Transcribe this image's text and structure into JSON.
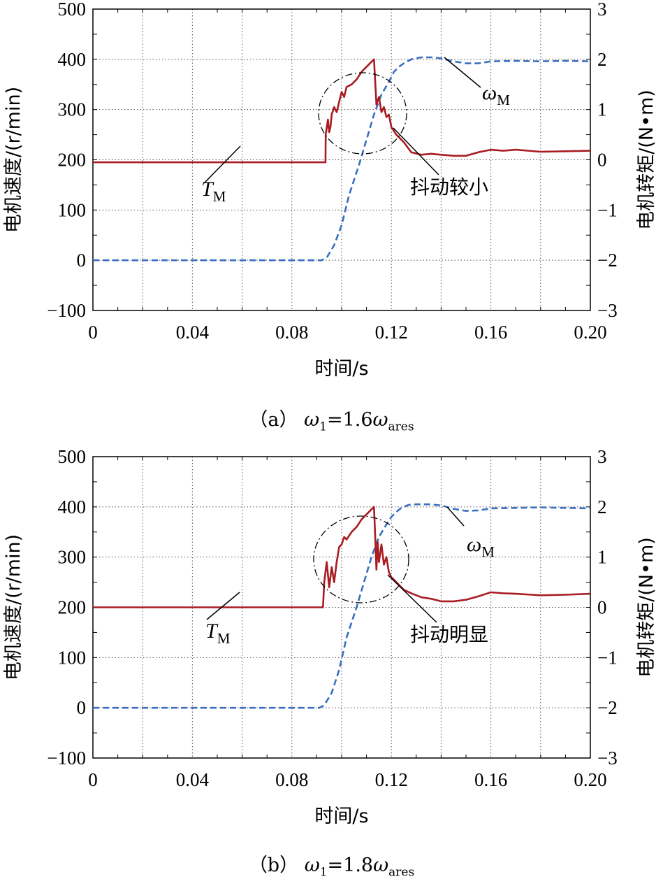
{
  "chart_data": [
    {
      "type": "line",
      "panel": "a",
      "caption": {
        "prefix": "（a） ",
        "w": "ω",
        "sub1": "1",
        "mid": "=1.6",
        "w2": "ω",
        "sub2": "ares"
      },
      "xlabel": "时间/s",
      "ylabel_left": "电机速度/(r/min)",
      "ylabel_right": "电机转矩/(N•m)",
      "xlim": [
        0,
        0.2
      ],
      "ylim_left": [
        -100,
        500
      ],
      "ylim_right": [
        -3,
        3
      ],
      "x_ticks": [
        "0",
        "0.04",
        "0.08",
        "0.12",
        "0.16",
        "0.20"
      ],
      "y_left_ticks": [
        "−100",
        "0",
        "100",
        "200",
        "300",
        "400",
        "500"
      ],
      "y_right_ticks": [
        "−3",
        "−2",
        "−1",
        "0",
        "1",
        "2",
        "3"
      ],
      "grid": true,
      "annotations": {
        "speed_label": "ω",
        "speed_sub": "M",
        "torque_label": "T",
        "torque_sub": "M",
        "note": "抖动较小"
      },
      "colors": {
        "speed": "#3a6fc0",
        "torque": "#a81c22"
      },
      "series": [
        {
          "role": "speed",
          "axis": "left",
          "style": "dashed",
          "x": [
            0,
            0.03,
            0.06,
            0.092,
            0.094,
            0.097,
            0.1,
            0.103,
            0.107,
            0.11,
            0.113,
            0.116,
            0.119,
            0.121,
            0.123,
            0.125,
            0.128,
            0.132,
            0.136,
            0.14,
            0.145,
            0.15,
            0.155,
            0.16,
            0.17,
            0.18,
            0.19,
            0.2
          ],
          "y": [
            0,
            0,
            0,
            0,
            5,
            30,
            70,
            130,
            190,
            240,
            290,
            330,
            355,
            375,
            385,
            392,
            400,
            404,
            404,
            402,
            396,
            392,
            392,
            396,
            397,
            396,
            397,
            396
          ]
        },
        {
          "role": "torque",
          "axis": "right",
          "style": "solid",
          "x": [
            0,
            0.03,
            0.06,
            0.0935,
            0.0936,
            0.0945,
            0.095,
            0.0955,
            0.096,
            0.097,
            0.098,
            0.099,
            0.1,
            0.101,
            0.102,
            0.104,
            0.106,
            0.108,
            0.11,
            0.112,
            0.113,
            0.1135,
            0.114,
            0.115,
            0.116,
            0.117,
            0.118,
            0.119,
            0.12,
            0.122,
            0.125,
            0.128,
            0.132,
            0.136,
            0.14,
            0.145,
            0.15,
            0.155,
            0.16,
            0.165,
            0.17,
            0.18,
            0.19,
            0.2
          ],
          "y": [
            -0.05,
            -0.05,
            -0.05,
            -0.05,
            0.5,
            0.8,
            0.55,
            0.65,
            0.9,
            1.05,
            0.95,
            1.15,
            1.35,
            1.25,
            1.45,
            1.5,
            1.6,
            1.75,
            1.85,
            1.95,
            2.0,
            1.55,
            1.1,
            1.25,
            0.95,
            1.05,
            0.85,
            0.9,
            0.65,
            0.5,
            0.35,
            0.15,
            0.1,
            0.12,
            0.1,
            0.08,
            0.08,
            0.15,
            0.2,
            0.18,
            0.2,
            0.16,
            0.17,
            0.18
          ]
        }
      ]
    },
    {
      "type": "line",
      "panel": "b",
      "caption": {
        "prefix": "（b） ",
        "w": "ω",
        "sub1": "1",
        "mid": "=1.8",
        "w2": "ω",
        "sub2": "ares"
      },
      "xlabel": "时间/s",
      "ylabel_left": "电机速度/(r/min)",
      "ylabel_right": "电机转矩/(N•m)",
      "xlim": [
        0,
        0.2
      ],
      "ylim_left": [
        -100,
        500
      ],
      "ylim_right": [
        -3,
        3
      ],
      "x_ticks": [
        "0",
        "0.04",
        "0.08",
        "0.12",
        "0.16",
        "0.20"
      ],
      "y_left_ticks": [
        "−100",
        "0",
        "100",
        "200",
        "300",
        "400",
        "500"
      ],
      "y_right_ticks": [
        "−3",
        "−2",
        "−1",
        "0",
        "1",
        "2",
        "3"
      ],
      "grid": true,
      "annotations": {
        "speed_label": "ω",
        "speed_sub": "M",
        "torque_label": "T",
        "torque_sub": "M",
        "note": "抖动明显"
      },
      "colors": {
        "speed": "#3a6fc0",
        "torque": "#a81c22"
      },
      "series": [
        {
          "role": "speed",
          "axis": "left",
          "style": "dashed",
          "x": [
            0,
            0.03,
            0.06,
            0.091,
            0.093,
            0.096,
            0.099,
            0.102,
            0.106,
            0.109,
            0.112,
            0.115,
            0.118,
            0.12,
            0.122,
            0.124,
            0.127,
            0.13,
            0.135,
            0.14,
            0.145,
            0.15,
            0.155,
            0.16,
            0.17,
            0.18,
            0.19,
            0.2
          ],
          "y": [
            0,
            0,
            0,
            0,
            5,
            30,
            75,
            140,
            200,
            250,
            300,
            340,
            365,
            380,
            390,
            398,
            404,
            405,
            405,
            403,
            396,
            392,
            393,
            397,
            398,
            399,
            398,
            397
          ]
        },
        {
          "role": "torque",
          "axis": "right",
          "style": "solid",
          "x": [
            0,
            0.03,
            0.06,
            0.0925,
            0.093,
            0.094,
            0.095,
            0.096,
            0.097,
            0.098,
            0.099,
            0.1,
            0.101,
            0.102,
            0.104,
            0.106,
            0.108,
            0.11,
            0.112,
            0.113,
            0.1135,
            0.114,
            0.1145,
            0.115,
            0.116,
            0.117,
            0.118,
            0.119,
            0.12,
            0.122,
            0.125,
            0.128,
            0.132,
            0.136,
            0.14,
            0.145,
            0.15,
            0.155,
            0.16,
            0.165,
            0.17,
            0.18,
            0.19,
            0.2
          ],
          "y": [
            0,
            0,
            0,
            0,
            0.5,
            0.9,
            0.4,
            0.8,
            0.5,
            0.9,
            1.2,
            1.25,
            1.4,
            1.35,
            1.5,
            1.6,
            1.75,
            1.85,
            1.95,
            2.0,
            1.4,
            0.75,
            1.3,
            0.9,
            1.25,
            0.85,
            1.0,
            0.7,
            0.6,
            0.5,
            0.35,
            0.28,
            0.2,
            0.17,
            0.12,
            0.12,
            0.15,
            0.22,
            0.3,
            0.28,
            0.27,
            0.24,
            0.25,
            0.27
          ]
        }
      ]
    }
  ]
}
